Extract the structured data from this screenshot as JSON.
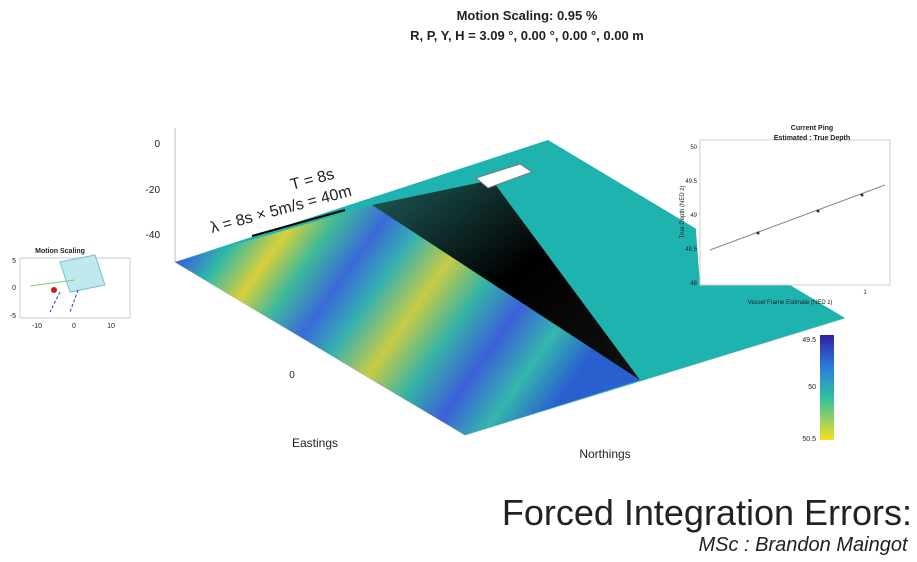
{
  "header": {
    "title": "Motion Scaling: 0.95 %",
    "subtitle": "R, P, Y, H = 3.09 °, 0.00 °, 0.00 °, 0.00 m"
  },
  "main_plot": {
    "z_ticks": [
      "0",
      "-20",
      "-40"
    ],
    "x_tick": "0",
    "x_label": "Eastings",
    "y_label": "Northings",
    "annotation": {
      "period": "T = 8s",
      "wavelength": "λ = 8s × 5m/s = 40m"
    }
  },
  "motion_inset": {
    "title": "Motion Scaling",
    "y_ticks": [
      "5",
      "0",
      "-5"
    ],
    "x_ticks": [
      "-10",
      "0",
      "10"
    ]
  },
  "ping_inset": {
    "title": "Current Ping",
    "subtitle": "Estimated : True Depth",
    "y_ticks": [
      "50",
      "49.5",
      "49",
      "48.5",
      "48"
    ],
    "x_tick": "1",
    "x_label": "Vessel Frame Estimate (NED z)",
    "y_label": "True Depth (NED z)"
  },
  "colorbar": {
    "ticks": [
      "49.5",
      "50",
      "50.5"
    ]
  },
  "footer": {
    "title": "Forced Integration Errors:",
    "author": "MSc : Brandon Maingot"
  }
}
